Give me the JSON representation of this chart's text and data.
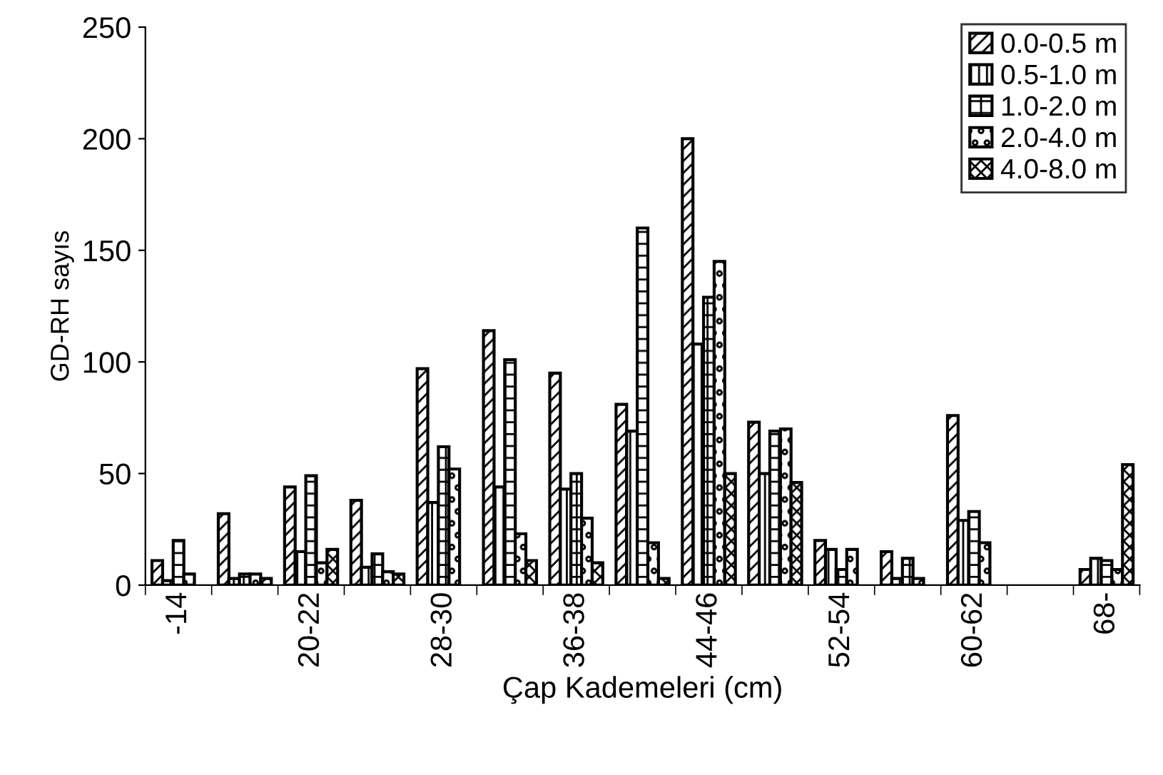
{
  "chart_data": {
    "type": "bar",
    "xlabel": "Çap Kademeleri (cm)",
    "ylabel": "GD-RH sayıs",
    "categories": [
      "-14",
      null,
      "20-22",
      null,
      "28-30",
      null,
      "36-38",
      null,
      "44-46",
      null,
      "52-54",
      null,
      "60-62",
      null,
      "68-"
    ],
    "series": [
      {
        "name": "0.0-0.5 m",
        "color": "#000000",
        "values": [
          11,
          32,
          44,
          38,
          97,
          114,
          95,
          81,
          200,
          73,
          20,
          15,
          76,
          null,
          7
        ]
      },
      {
        "name": "0.5-1.0 m",
        "color": "#000000",
        "values": [
          2,
          3,
          15,
          8,
          37,
          44,
          43,
          69,
          108,
          50,
          16,
          3,
          29,
          null,
          12
        ]
      },
      {
        "name": "1.0-2.0 m",
        "color": "#000000",
        "values": [
          20,
          5,
          49,
          14,
          62,
          101,
          50,
          160,
          129,
          69,
          7,
          12,
          33,
          null,
          11
        ]
      },
      {
        "name": "2.0-4.0 m",
        "color": "#000000",
        "values": [
          5,
          5,
          10,
          6,
          52,
          23,
          30,
          19,
          145,
          70,
          16,
          3,
          19,
          null,
          7
        ]
      },
      {
        "name": "4.0-8.0 m",
        "color": "#000000",
        "values": [
          null,
          3,
          16,
          5,
          null,
          11,
          10,
          3,
          50,
          46,
          null,
          null,
          null,
          null,
          54
        ]
      }
    ],
    "ylim": [
      0,
      250
    ],
    "yticks": [
      0,
      50,
      100,
      150,
      200,
      250
    ],
    "grid": false,
    "legend": "top right"
  }
}
